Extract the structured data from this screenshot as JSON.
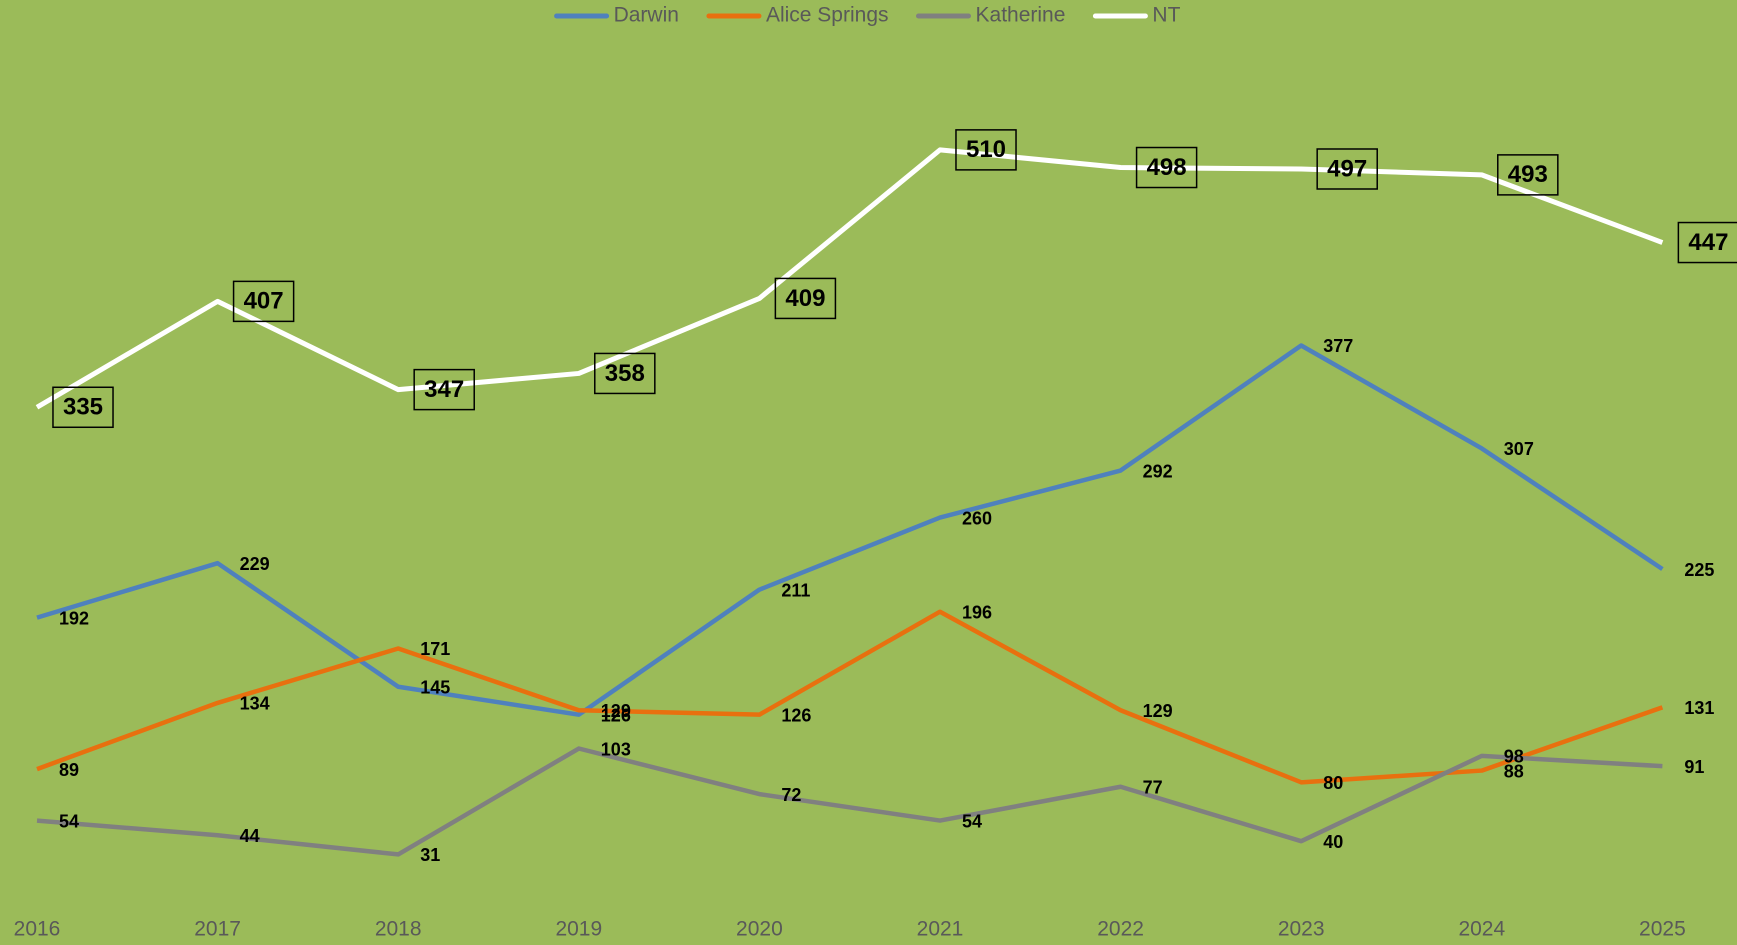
{
  "chart_data": {
    "type": "line",
    "categories": [
      "2016",
      "2017",
      "2018",
      "2019",
      "2020",
      "2021",
      "2022",
      "2023",
      "2024",
      "2025"
    ],
    "series": [
      {
        "name": "Darwin",
        "color": "#4f81bd",
        "values": [
          192,
          229,
          145,
          126,
          211,
          260,
          292,
          377,
          307,
          225
        ]
      },
      {
        "name": "Alice Springs",
        "color": "#e8700f",
        "values": [
          89,
          134,
          171,
          129,
          126,
          196,
          129,
          80,
          88,
          131
        ]
      },
      {
        "name": "Katherine",
        "color": "#808080",
        "values": [
          54,
          44,
          31,
          103,
          72,
          54,
          77,
          40,
          98,
          91
        ]
      },
      {
        "name": "NT",
        "color": "#ffffff",
        "values": [
          335,
          407,
          347,
          358,
          409,
          510,
          498,
          497,
          493,
          447
        ]
      }
    ],
    "ylim": [
      0,
      600
    ],
    "legend": "top"
  }
}
